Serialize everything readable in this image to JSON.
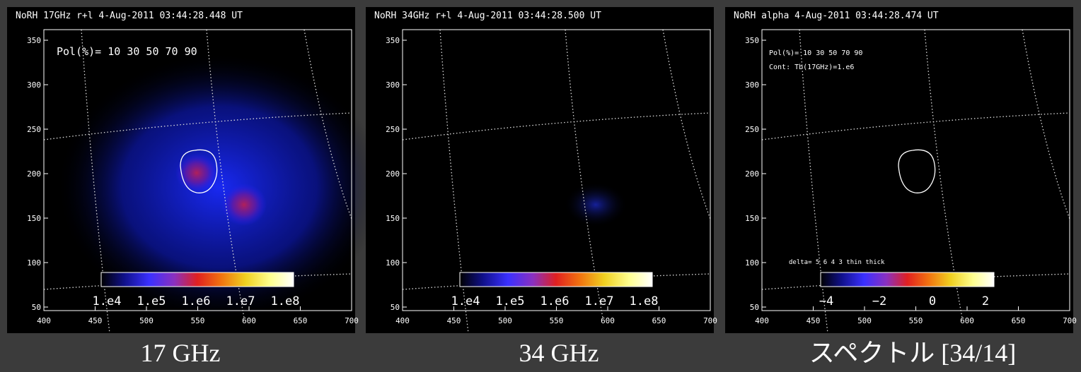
{
  "panels": [
    {
      "title": "NoRH 17GHz r+l   4-Aug-2011 03:44:28.448 UT",
      "xticks": [
        "400",
        "450",
        "500",
        "550",
        "600",
        "650",
        "700"
      ],
      "yticks": [
        "350",
        "300",
        "250",
        "200",
        "150",
        "100",
        "50"
      ],
      "annotations": [
        "Pol(%)= 10 30 50 70 90"
      ],
      "colorbar_labels": [
        "1.e4",
        "1.e5",
        "1.e6",
        "1.e7",
        "1.e8"
      ]
    },
    {
      "title": "NoRH 34GHz r+l   4-Aug-2011 03:44:28.500 UT",
      "xticks": [
        "400",
        "450",
        "500",
        "550",
        "600",
        "650",
        "700"
      ],
      "yticks": [
        "350",
        "300",
        "250",
        "200",
        "150",
        "100",
        "50"
      ],
      "annotations": [],
      "colorbar_labels": [
        "1.e4",
        "1.e5",
        "1.e6",
        "1.e7",
        "1.e8"
      ]
    },
    {
      "title": "NoRH alpha   4-Aug-2011 03:44:28.474 UT",
      "xticks": [
        "400",
        "450",
        "500",
        "550",
        "600",
        "650",
        "700"
      ],
      "yticks": [
        "350",
        "300",
        "250",
        "200",
        "150",
        "100",
        "50"
      ],
      "annotations": [
        "Pol(%)= 10 30 50 70 90",
        "Cont: Tb(17GHz)=1.e6"
      ],
      "colorbar_top": "delta= 5    6    4    3    thin       thick",
      "colorbar_labels": [
        "−4",
        "−2",
        "0",
        "2"
      ]
    }
  ],
  "captions": [
    "17 GHz",
    "34 GHz",
    "スペクトル [34/14]"
  ]
}
